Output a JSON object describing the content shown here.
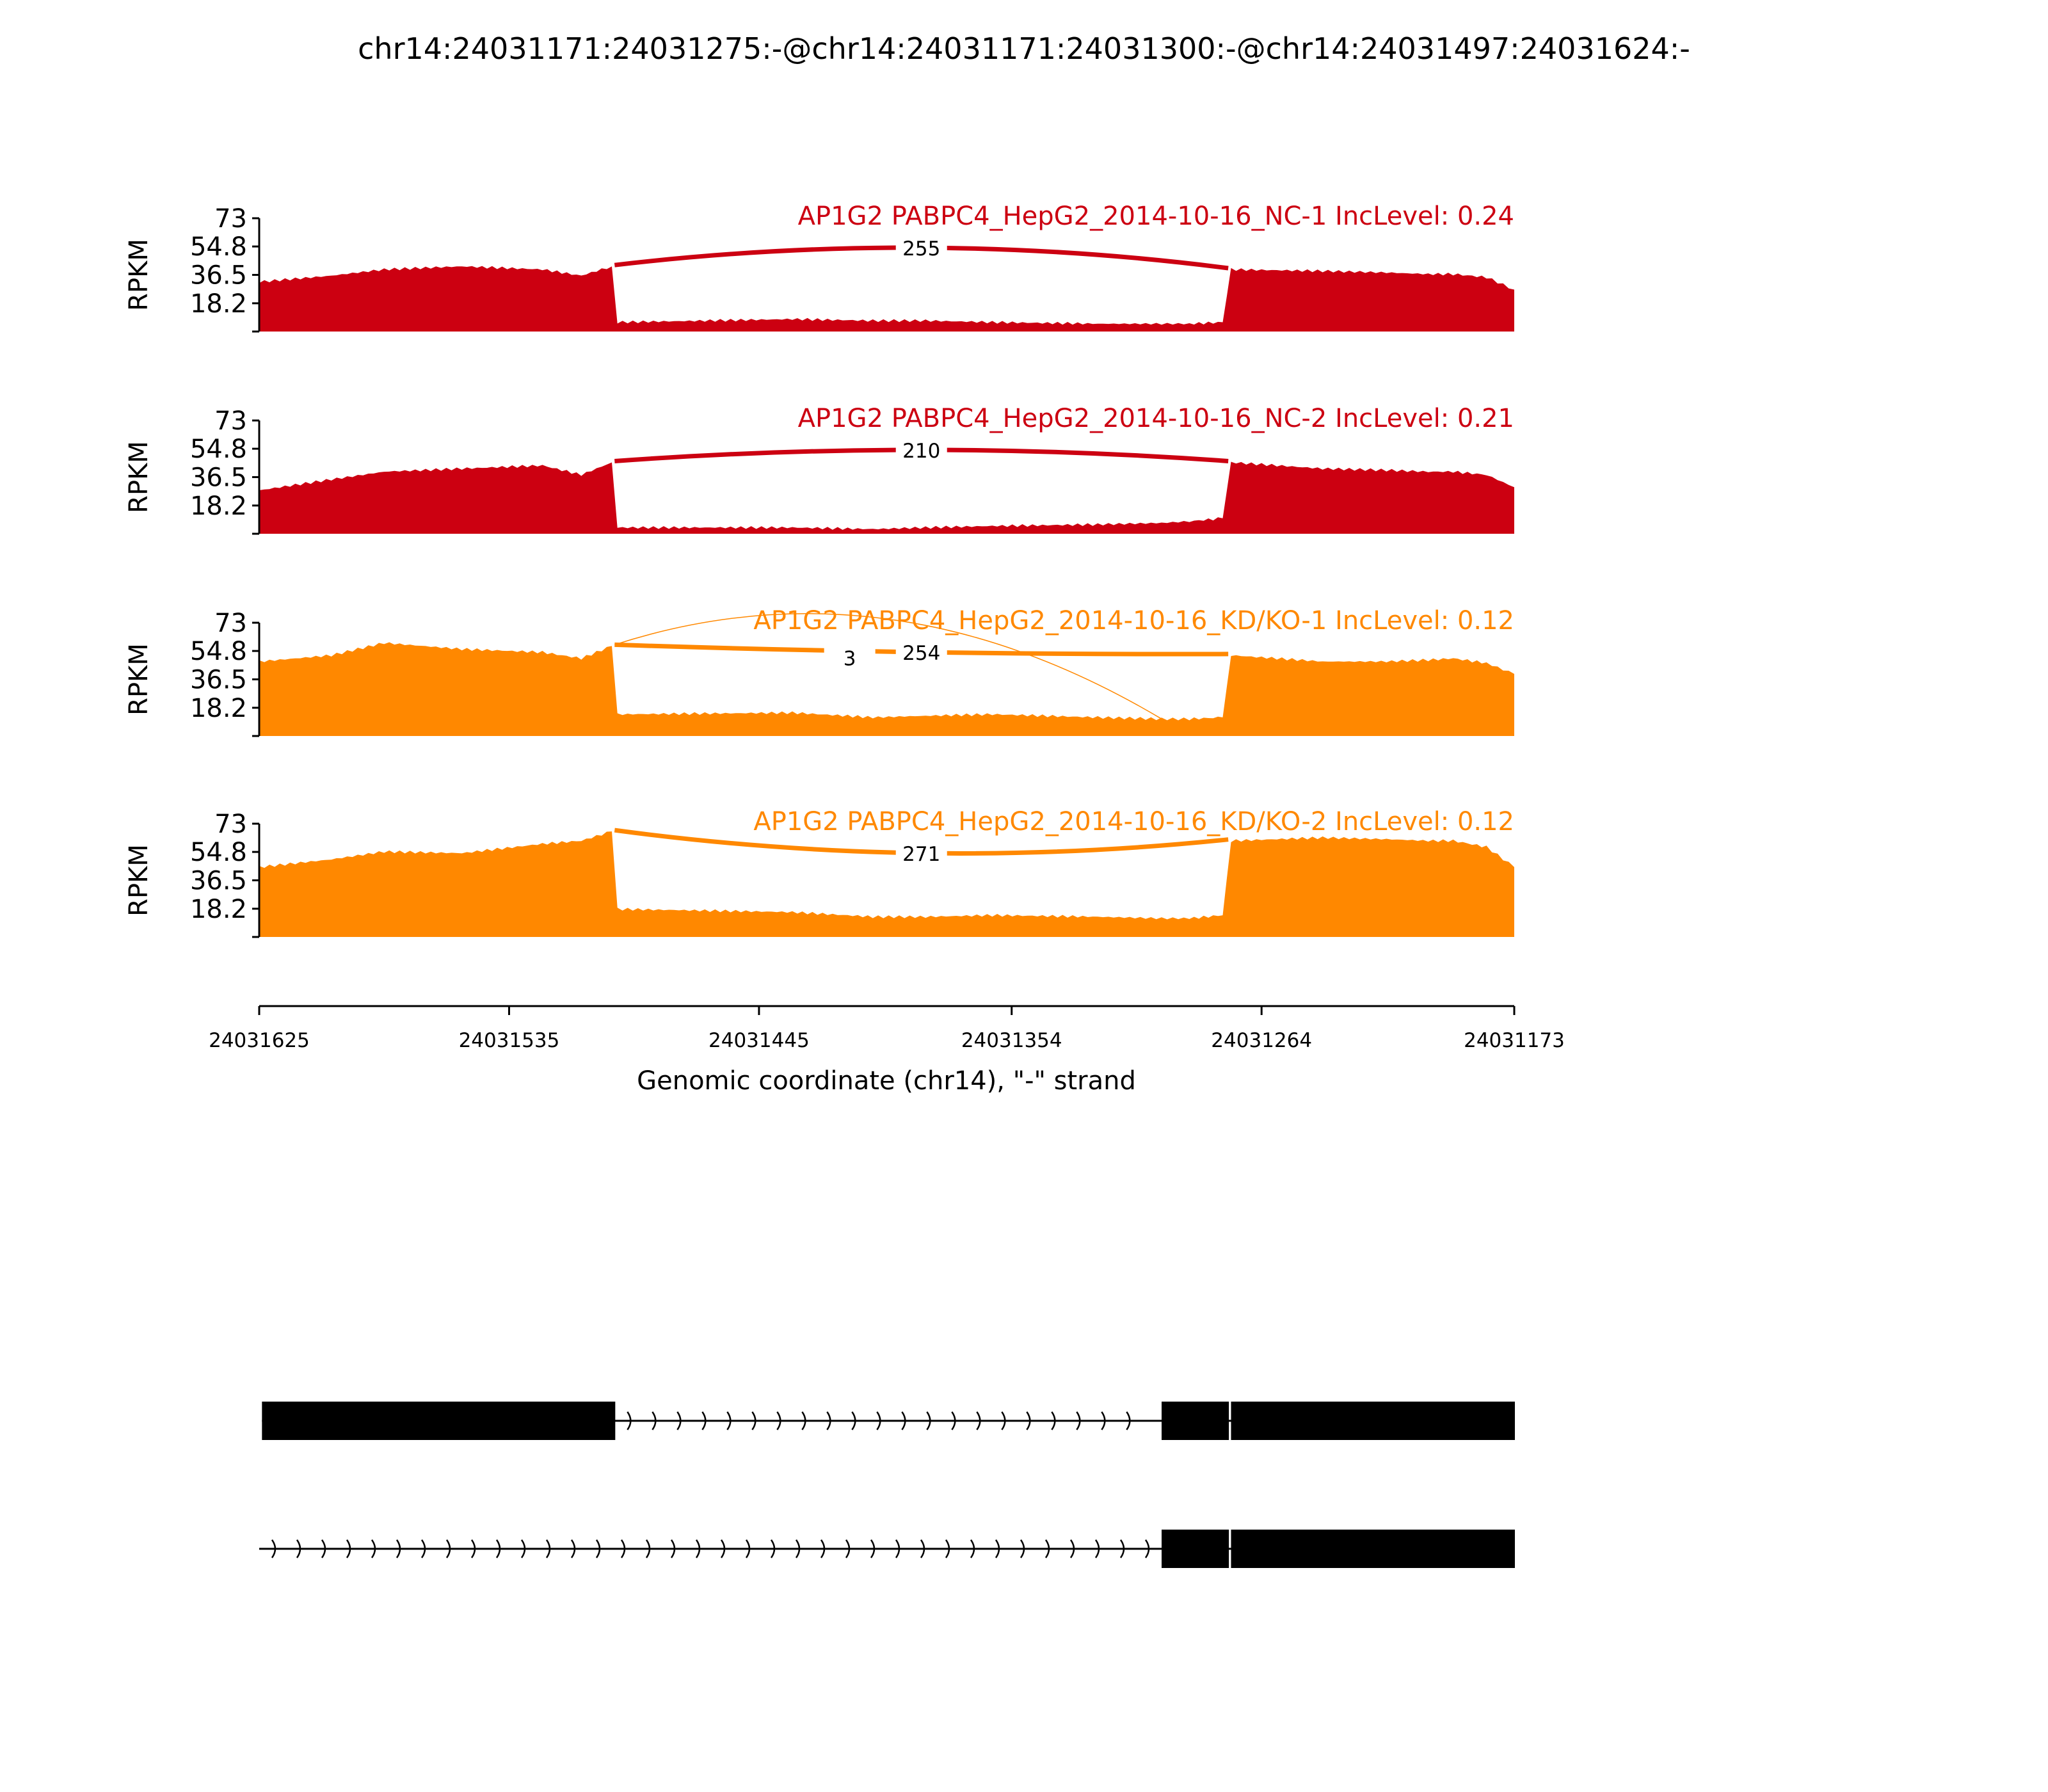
{
  "chart_data": {
    "type": "area",
    "title": "chr14:24031171:24031275:-@chr14:24031171:24031300:-@chr14:24031497:24031624:-",
    "xlabel": "Genomic coordinate (chr14), \"-\" strand",
    "ylabel": "RPKM",
    "xlim": [
      24031625,
      24031173
    ],
    "x_reversed": true,
    "ylim": [
      0,
      73
    ],
    "yticks": [
      "18.2",
      "36.5",
      "54.8",
      "73"
    ],
    "xticks": [
      "24031625",
      "24031535",
      "24031445",
      "24031354",
      "24031264",
      "24031173"
    ],
    "grid": false,
    "positions": [
      24031625,
      24031599,
      24031580,
      24031552,
      24031523,
      24031509,
      24031498,
      24031496,
      24031433,
      24031404,
      24031385,
      24031361,
      24031323,
      24031300,
      24031290,
      24031278,
      24031275,
      24031242,
      24031219,
      24031204,
      24031195,
      24031183,
      24031173
    ],
    "series": [
      {
        "name": "AP1G2 PABPC4_HepG2_2014-10-16_NC-1 IncLevel: 0.24",
        "color": "#cc0011",
        "values": [
          32,
          36,
          40,
          42,
          40,
          36,
          42,
          6,
          8,
          7,
          7,
          6,
          5,
          5,
          5,
          6,
          40,
          39,
          38,
          37,
          37,
          35,
          27
        ],
        "junctions": [
          {
            "start": 24031497,
            "end": 24031276,
            "count": "255"
          }
        ]
      },
      {
        "name": "AP1G2 PABPC4_HepG2_2014-10-16_NC-2 IncLevel: 0.21",
        "color": "#cc0011",
        "values": [
          28,
          35,
          40,
          42,
          44,
          38,
          46,
          4,
          4,
          3,
          4,
          5,
          6,
          7,
          8,
          10,
          46,
          42,
          41,
          40,
          40,
          38,
          30
        ],
        "junctions": [
          {
            "start": 24031497,
            "end": 24031276,
            "count": "210"
          }
        ]
      },
      {
        "name": "AP1G2 PABPC4_HepG2_2014-10-16_KD/KO-1 IncLevel: 0.12",
        "color": "#ff8800",
        "values": [
          48,
          52,
          60,
          56,
          54,
          50,
          58,
          14,
          15,
          12,
          13,
          14,
          12,
          11,
          11,
          12,
          52,
          48,
          48,
          49,
          50,
          47,
          40
        ],
        "junctions": [
          {
            "start": 24031497,
            "end": 24031276,
            "count": "254"
          },
          {
            "start": 24031497,
            "end": 24031300,
            "count": "3"
          }
        ]
      },
      {
        "name": "AP1G2 PABPC4_HepG2_2014-10-16_KD/KO-2 IncLevel: 0.12",
        "color": "#ff8800",
        "values": [
          45,
          50,
          55,
          54,
          60,
          62,
          68,
          18,
          16,
          13,
          13,
          14,
          13,
          12,
          12,
          14,
          62,
          64,
          63,
          62,
          62,
          58,
          45
        ],
        "junctions": [
          {
            "start": 24031497,
            "end": 24031276,
            "count": "271"
          }
        ]
      }
    ],
    "transcripts": [
      {
        "start": 24031624,
        "end": 24031173,
        "exons": [
          [
            24031624,
            24031497
          ],
          [
            24031300,
            24031276
          ],
          [
            24031275,
            24031173
          ]
        ]
      },
      {
        "start": 24031625,
        "end": 24031173,
        "exons": [
          [
            24031300,
            24031276
          ],
          [
            24031275,
            24031173
          ]
        ]
      }
    ]
  }
}
